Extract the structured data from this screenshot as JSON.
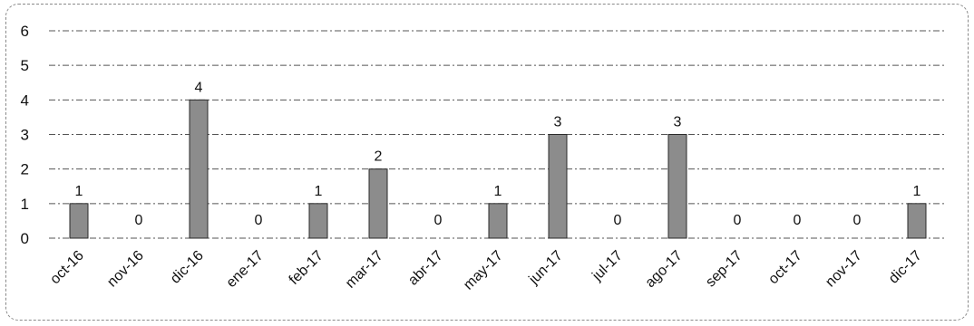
{
  "chart_data": {
    "type": "bar",
    "title": "",
    "xlabel": "",
    "ylabel": "",
    "categories": [
      "oct-16",
      "nov-16",
      "dic-16",
      "ene-17",
      "feb-17",
      "mar-17",
      "abr-17",
      "may-17",
      "jun-17",
      "jul-17",
      "ago-17",
      "sep-17",
      "oct-17",
      "nov-17",
      "dic-17"
    ],
    "values": [
      1,
      0,
      4,
      0,
      1,
      2,
      0,
      1,
      3,
      0,
      3,
      0,
      0,
      0,
      1
    ],
    "ylim": [
      0,
      6
    ],
    "yticks": [
      "0",
      "1",
      "2",
      "3",
      "4",
      "5",
      "6"
    ],
    "grid": true,
    "legend": "none",
    "colors": {
      "bar": "#8c8c8c",
      "bar_edge": "#2a2a2a",
      "grid": "#555555"
    }
  }
}
